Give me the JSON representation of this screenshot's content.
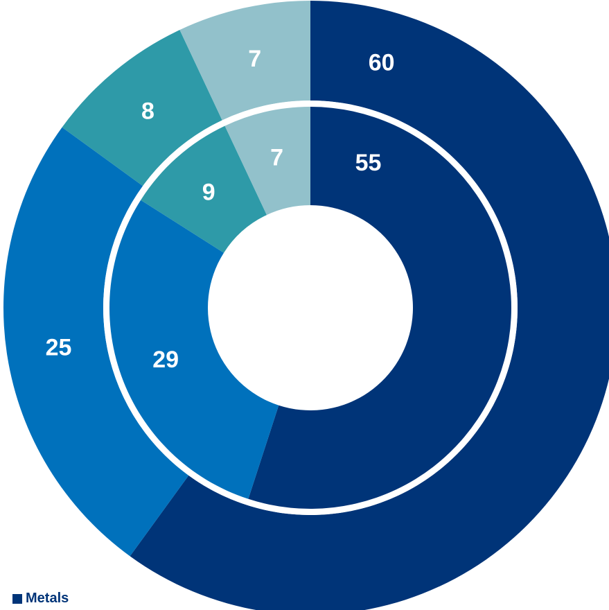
{
  "chart_data": {
    "type": "pie",
    "rings": [
      {
        "name": "",
        "values": [
          60,
          25,
          8,
          7
        ],
        "labels": [
          "60",
          "25",
          "8",
          "7"
        ]
      },
      {
        "name": "",
        "values": [
          55,
          29,
          9,
          7
        ],
        "labels": [
          "55",
          "29",
          "9",
          "7"
        ]
      }
    ],
    "colors": [
      "#003478",
      "#0071BC",
      "#2E9AA8",
      "#92C1CB"
    ],
    "legend": {
      "placement": "bottom-left",
      "entries": [
        "Metals"
      ]
    }
  }
}
